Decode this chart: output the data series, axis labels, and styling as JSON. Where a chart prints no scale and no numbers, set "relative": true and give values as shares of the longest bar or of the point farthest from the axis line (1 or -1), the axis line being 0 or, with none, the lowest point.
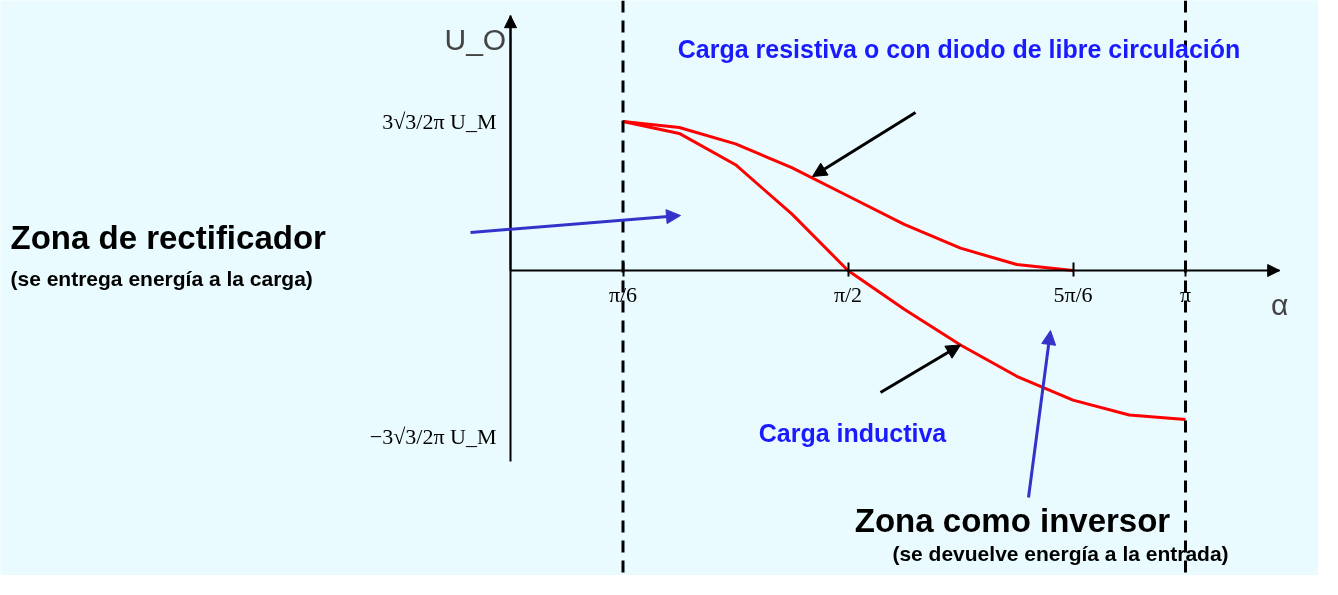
{
  "chart_data": {
    "type": "line",
    "relative": true,
    "xlabel": "α",
    "ylabel": "U_O",
    "xlim": [
      0,
      3.58
    ],
    "xticks": [
      {
        "value": 0.5236,
        "label": "π/6"
      },
      {
        "value": 1.5708,
        "label": "π/2"
      },
      {
        "value": 2.618,
        "label": "5π/6"
      },
      {
        "value": 3.1416,
        "label": "π"
      }
    ],
    "series": [
      {
        "color": "#ff0000",
        "x": [
          0.5236,
          0.7854,
          1.0472,
          1.309,
          1.5708,
          1.8326,
          2.0944,
          2.3562,
          2.618
        ],
        "values": [
          1,
          0.96,
          0.85,
          0.69,
          0.5,
          0.31,
          0.15,
          0.04,
          0
        ]
      },
      {
        "color": "#ff0000",
        "x": [
          0.5236,
          0.7854,
          1.0472,
          1.309,
          1.5708,
          1.8326,
          2.0944,
          2.3562,
          2.618,
          2.8798,
          3.1416
        ],
        "values": [
          1,
          0.92,
          0.71,
          0.38,
          0,
          -0.26,
          -0.5,
          -0.71,
          -0.87,
          -0.97,
          -1
        ]
      }
    ],
    "ref_lines": [
      {
        "axis": "x",
        "value": 0.5236,
        "line_style": "dashed",
        "color": "#000000"
      },
      {
        "axis": "x",
        "value": 3.1416,
        "line_style": "dashed",
        "color": "#000000"
      }
    ],
    "annotations": [
      "Carga resistiva o  con diodo de libre circulación",
      {
        "text": "Carga inductiva",
        "x": 2.0944,
        "y": -0.5
      },
      "Zona de rectificador",
      "(se entrega energía a la carga)",
      "Zona como inversor",
      "(se devuelve energía a la entrada)",
      "3√3/2π U_M",
      "−3√3/2π U_M"
    ],
    "grid": false,
    "line_style": "solid",
    "marker": "none"
  }
}
